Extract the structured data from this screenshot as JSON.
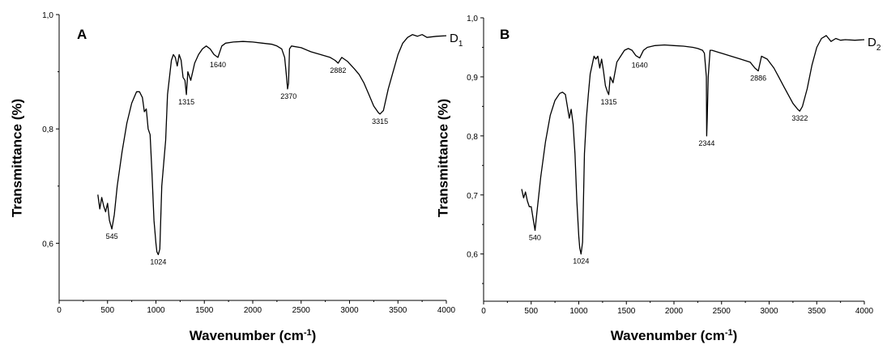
{
  "chart_data": [
    {
      "type": "line",
      "panel_label": "A",
      "series_name": "D",
      "series_subscript": "1",
      "xlabel": "Wavenumber (cm",
      "xlabel_sup": "-1",
      "xlabel_end": ")",
      "ylabel": "Transmittance (%)",
      "xlim": [
        0,
        4000
      ],
      "ylim": [
        0.5,
        1.0
      ],
      "x_ticks": [
        0,
        500,
        1000,
        1500,
        2000,
        2500,
        3000,
        3500,
        4000
      ],
      "x_tick_labels": [
        "0",
        "500",
        "1000",
        "1500",
        "2000",
        "2500",
        "3000",
        "3500",
        "4000"
      ],
      "y_ticks": [
        0.6,
        0.8,
        1.0
      ],
      "y_tick_labels": [
        "0,6",
        "0,8",
        "1,0"
      ],
      "grid": false,
      "x": [
        400,
        420,
        440,
        460,
        480,
        500,
        520,
        545,
        570,
        600,
        650,
        700,
        750,
        800,
        830,
        860,
        880,
        900,
        920,
        940,
        960,
        980,
        1000,
        1010,
        1024,
        1040,
        1060,
        1080,
        1100,
        1120,
        1140,
        1160,
        1180,
        1200,
        1220,
        1240,
        1260,
        1280,
        1300,
        1315,
        1330,
        1360,
        1400,
        1440,
        1480,
        1520,
        1560,
        1600,
        1640,
        1680,
        1720,
        1800,
        1900,
        2000,
        2100,
        2200,
        2250,
        2300,
        2330,
        2350,
        2360,
        2370,
        2380,
        2400,
        2500,
        2600,
        2700,
        2800,
        2850,
        2882,
        2920,
        2980,
        3050,
        3100,
        3150,
        3200,
        3250,
        3300,
        3315,
        3350,
        3400,
        3450,
        3500,
        3550,
        3600,
        3650,
        3700,
        3750,
        3800,
        3900,
        4000
      ],
      "y": [
        0.685,
        0.66,
        0.68,
        0.665,
        0.655,
        0.67,
        0.64,
        0.625,
        0.65,
        0.7,
        0.76,
        0.81,
        0.845,
        0.865,
        0.865,
        0.855,
        0.83,
        0.835,
        0.8,
        0.79,
        0.72,
        0.64,
        0.6,
        0.585,
        0.58,
        0.59,
        0.7,
        0.74,
        0.78,
        0.86,
        0.89,
        0.92,
        0.93,
        0.925,
        0.91,
        0.93,
        0.92,
        0.89,
        0.885,
        0.86,
        0.9,
        0.885,
        0.915,
        0.93,
        0.94,
        0.945,
        0.94,
        0.93,
        0.925,
        0.945,
        0.95,
        0.952,
        0.953,
        0.952,
        0.95,
        0.948,
        0.945,
        0.94,
        0.925,
        0.89,
        0.87,
        0.88,
        0.94,
        0.945,
        0.942,
        0.935,
        0.93,
        0.925,
        0.92,
        0.915,
        0.925,
        0.918,
        0.905,
        0.895,
        0.88,
        0.86,
        0.84,
        0.828,
        0.826,
        0.832,
        0.87,
        0.9,
        0.93,
        0.95,
        0.96,
        0.965,
        0.962,
        0.965,
        0.96,
        0.962,
        0.963
      ],
      "annotations": [
        {
          "label": "545",
          "x": 545,
          "y": 0.625
        },
        {
          "label": "1024",
          "x": 1024,
          "y": 0.58
        },
        {
          "label": "1315",
          "x": 1315,
          "y": 0.86
        },
        {
          "label": "1640",
          "x": 1640,
          "y": 0.925
        },
        {
          "label": "2370",
          "x": 2370,
          "y": 0.87
        },
        {
          "label": "2882",
          "x": 2882,
          "y": 0.915
        },
        {
          "label": "3315",
          "x": 3315,
          "y": 0.826
        }
      ]
    },
    {
      "type": "line",
      "panel_label": "B",
      "series_name": "D",
      "series_subscript": "2",
      "xlabel": "Wavenumber (cm",
      "xlabel_sup": "-1",
      "xlabel_end": ")",
      "ylabel": "Transmittance (%)",
      "xlim": [
        0,
        4000
      ],
      "ylim": [
        0.52,
        1.0
      ],
      "x_ticks": [
        0,
        500,
        1000,
        1500,
        2000,
        2500,
        3000,
        3500,
        4000
      ],
      "x_tick_labels": [
        "0",
        "500",
        "1000",
        "1500",
        "2000",
        "2500",
        "3000",
        "3500",
        "4000"
      ],
      "y_ticks": [
        0.6,
        0.7,
        0.8,
        0.9,
        1.0
      ],
      "y_tick_labels": [
        "0,6",
        "0,7",
        "0,8",
        "0,9",
        "1,0"
      ],
      "grid": false,
      "x": [
        400,
        420,
        440,
        460,
        480,
        500,
        520,
        540,
        560,
        600,
        650,
        700,
        750,
        800,
        830,
        860,
        880,
        900,
        920,
        940,
        960,
        980,
        1000,
        1010,
        1024,
        1040,
        1060,
        1080,
        1100,
        1120,
        1140,
        1160,
        1180,
        1200,
        1220,
        1240,
        1260,
        1280,
        1300,
        1315,
        1330,
        1360,
        1400,
        1440,
        1480,
        1520,
        1560,
        1600,
        1640,
        1680,
        1720,
        1800,
        1900,
        2000,
        2100,
        2200,
        2250,
        2300,
        2320,
        2340,
        2344,
        2350,
        2360,
        2380,
        2400,
        2500,
        2600,
        2700,
        2800,
        2850,
        2886,
        2920,
        2980,
        3050,
        3100,
        3150,
        3200,
        3250,
        3300,
        3322,
        3350,
        3400,
        3450,
        3500,
        3550,
        3600,
        3650,
        3700,
        3750,
        3800,
        3900,
        4000
      ],
      "y": [
        0.71,
        0.695,
        0.705,
        0.69,
        0.68,
        0.68,
        0.66,
        0.64,
        0.67,
        0.73,
        0.79,
        0.835,
        0.86,
        0.872,
        0.874,
        0.87,
        0.85,
        0.83,
        0.845,
        0.82,
        0.77,
        0.69,
        0.63,
        0.61,
        0.6,
        0.62,
        0.77,
        0.83,
        0.87,
        0.905,
        0.92,
        0.935,
        0.93,
        0.935,
        0.915,
        0.93,
        0.91,
        0.885,
        0.875,
        0.87,
        0.9,
        0.89,
        0.925,
        0.935,
        0.945,
        0.948,
        0.945,
        0.936,
        0.932,
        0.945,
        0.95,
        0.953,
        0.954,
        0.953,
        0.952,
        0.95,
        0.948,
        0.945,
        0.94,
        0.9,
        0.8,
        0.83,
        0.9,
        0.945,
        0.945,
        0.94,
        0.935,
        0.93,
        0.925,
        0.915,
        0.91,
        0.935,
        0.93,
        0.915,
        0.9,
        0.885,
        0.87,
        0.855,
        0.845,
        0.842,
        0.85,
        0.88,
        0.92,
        0.95,
        0.965,
        0.97,
        0.96,
        0.965,
        0.962,
        0.963,
        0.962,
        0.963
      ],
      "annotations": [
        {
          "label": "540",
          "x": 540,
          "y": 0.64
        },
        {
          "label": "1024",
          "x": 1024,
          "y": 0.6
        },
        {
          "label": "1315",
          "x": 1315,
          "y": 0.87
        },
        {
          "label": "1640",
          "x": 1640,
          "y": 0.932
        },
        {
          "label": "2344",
          "x": 2344,
          "y": 0.8
        },
        {
          "label": "2886",
          "x": 2886,
          "y": 0.91
        },
        {
          "label": "3322",
          "x": 3322,
          "y": 0.842
        }
      ]
    }
  ]
}
